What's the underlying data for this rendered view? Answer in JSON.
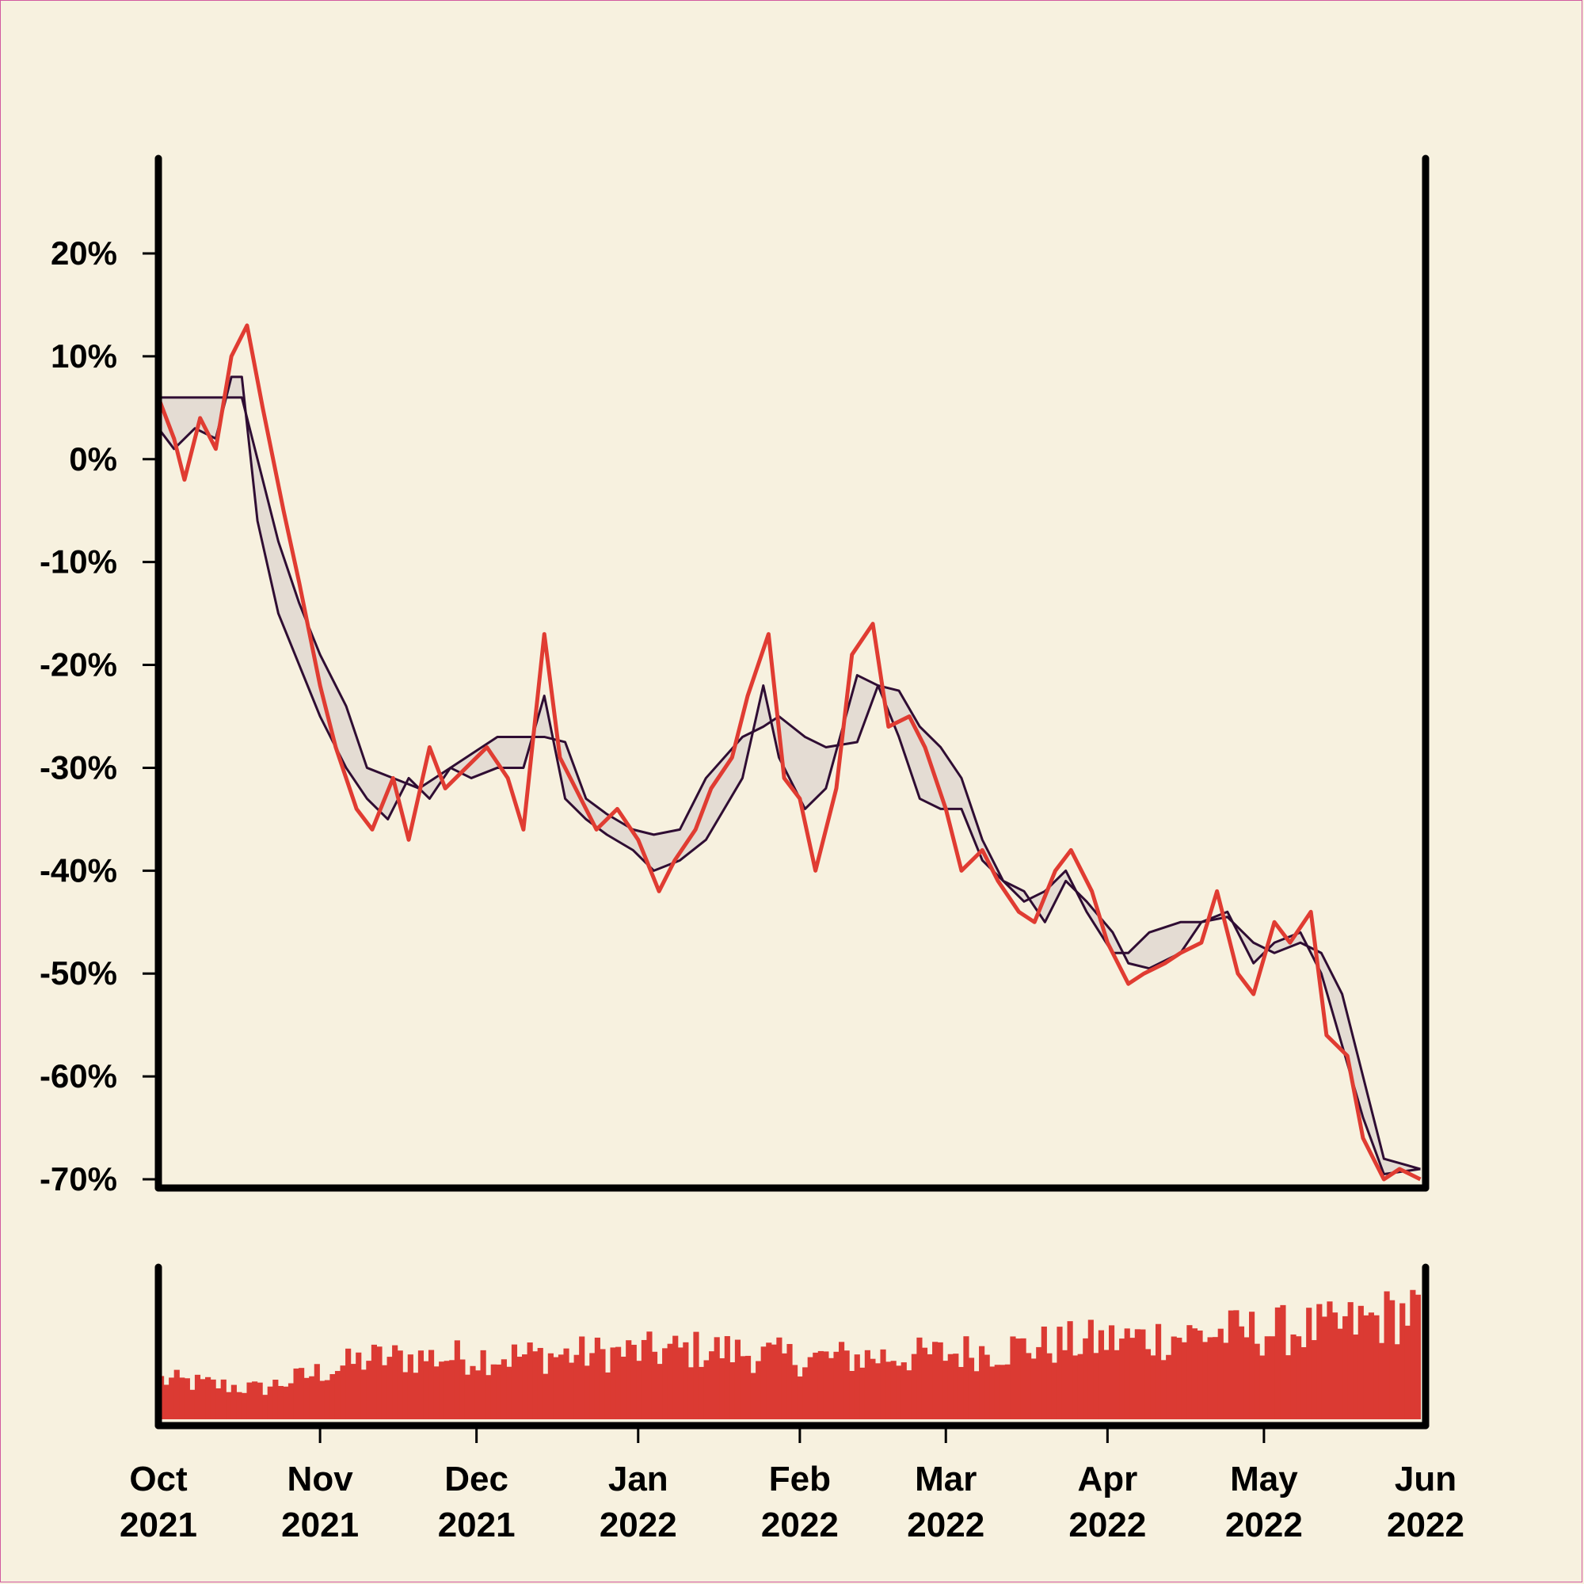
{
  "colors": {
    "background": "#f7f1df",
    "price_line": "#e03c32",
    "band_line": "#2f0d33",
    "band_fill": "#e4dcd3",
    "volume_bar": "#db3a33",
    "axis": "#000000"
  },
  "chart_data": [
    {
      "type": "line",
      "panel": "price",
      "title": "",
      "xlabel": "",
      "ylabel": "",
      "y_unit": "percent",
      "ylim": [
        -70,
        27
      ],
      "yticks": [
        20,
        10,
        0,
        -10,
        -20,
        -30,
        -40,
        -50,
        -60,
        -70
      ],
      "ytick_labels": [
        "20%",
        "10%",
        "0%",
        "-10%",
        "-20%",
        "-30%",
        "-40%",
        "-50%",
        "-60%",
        "-70%"
      ],
      "grid": false,
      "legend": "none",
      "series": [
        {
          "role": "price",
          "x": [
            "2021-10-01",
            "2021-10-04",
            "2021-10-06",
            "2021-10-09",
            "2021-10-12",
            "2021-10-15",
            "2021-10-18",
            "2021-10-21",
            "2021-10-25",
            "2021-10-28",
            "2021-11-01",
            "2021-11-04",
            "2021-11-08",
            "2021-11-11",
            "2021-11-15",
            "2021-11-18",
            "2021-11-22",
            "2021-11-25",
            "2021-11-29",
            "2021-12-03",
            "2021-12-07",
            "2021-12-10",
            "2021-12-14",
            "2021-12-17",
            "2021-12-21",
            "2021-12-24",
            "2021-12-28",
            "2022-01-01",
            "2022-01-05",
            "2022-01-08",
            "2022-01-12",
            "2022-01-15",
            "2022-01-19",
            "2022-01-22",
            "2022-01-26",
            "2022-01-29",
            "2022-02-01",
            "2022-02-04",
            "2022-02-08",
            "2022-02-11",
            "2022-02-15",
            "2022-02-18",
            "2022-02-22",
            "2022-02-25",
            "2022-03-01",
            "2022-03-04",
            "2022-03-08",
            "2022-03-11",
            "2022-03-15",
            "2022-03-18",
            "2022-03-22",
            "2022-03-25",
            "2022-03-29",
            "2022-04-01",
            "2022-04-05",
            "2022-04-08",
            "2022-04-12",
            "2022-04-15",
            "2022-04-19",
            "2022-04-22",
            "2022-04-26",
            "2022-04-29",
            "2022-05-03",
            "2022-05-06",
            "2022-05-10",
            "2022-05-13",
            "2022-05-17",
            "2022-05-20",
            "2022-05-24",
            "2022-05-27",
            "2022-05-31"
          ],
          "values": [
            6,
            2,
            -2,
            4,
            1,
            10,
            13,
            5,
            -5,
            -12,
            -22,
            -28,
            -34,
            -36,
            -31,
            -37,
            -28,
            -32,
            -30,
            -28,
            -31,
            -36,
            -17,
            -29,
            -33,
            -36,
            -34,
            -37,
            -42,
            -39,
            -36,
            -32,
            -29,
            -23,
            -17,
            -31,
            -33,
            -40,
            -32,
            -19,
            -16,
            -26,
            -25,
            -28,
            -34,
            -40,
            -38,
            -41,
            -44,
            -45,
            -40,
            -38,
            -42,
            -47,
            -51,
            -50,
            -49,
            -48,
            -47,
            -42,
            -50,
            -52,
            -45,
            -47,
            -44,
            -56,
            -58,
            -66,
            -70,
            -69,
            -70
          ]
        },
        {
          "role": "band-upper",
          "x": [
            "2021-10-01",
            "2021-10-14",
            "2021-10-17",
            "2021-10-20",
            "2021-10-24",
            "2021-10-28",
            "2021-11-01",
            "2021-11-06",
            "2021-11-10",
            "2021-11-20",
            "2021-11-26",
            "2021-11-29",
            "2021-12-02",
            "2021-12-05",
            "2021-12-14",
            "2021-12-18",
            "2021-12-22",
            "2021-12-26",
            "2021-12-31",
            "2022-01-04",
            "2022-01-09",
            "2022-01-14",
            "2022-01-21",
            "2022-01-25",
            "2022-01-28",
            "2022-02-02",
            "2022-02-06",
            "2022-02-12",
            "2022-02-16",
            "2022-02-20",
            "2022-02-24",
            "2022-02-28",
            "2022-03-04",
            "2022-03-08",
            "2022-03-12",
            "2022-03-16",
            "2022-03-20",
            "2022-03-24",
            "2022-03-28",
            "2022-04-02",
            "2022-04-05",
            "2022-04-09",
            "2022-04-15",
            "2022-04-19",
            "2022-04-24",
            "2022-04-29",
            "2022-05-03",
            "2022-05-08",
            "2022-05-12",
            "2022-05-16",
            "2022-05-20",
            "2022-05-24",
            "2022-05-31"
          ],
          "values": [
            6,
            6,
            6,
            0,
            -8,
            -14,
            -19,
            -24,
            -30,
            -32,
            -30,
            -29,
            -28,
            -27,
            -27,
            -27.5,
            -33,
            -34.5,
            -36,
            -36.5,
            -36,
            -31,
            -27,
            -26,
            -25,
            -27,
            -28,
            -27.5,
            -22,
            -22.5,
            -26,
            -28,
            -31,
            -37,
            -41,
            -43,
            -42,
            -40,
            -44,
            -48,
            -48,
            -46,
            -45,
            -45,
            -44.5,
            -47,
            -48,
            -47,
            -48,
            -52,
            -60,
            -68,
            -69
          ]
        },
        {
          "role": "band-lower",
          "x": [
            "2021-10-01",
            "2021-10-04",
            "2021-10-08",
            "2021-10-12",
            "2021-10-15",
            "2021-10-17",
            "2021-10-20",
            "2021-10-24",
            "2021-10-28",
            "2021-11-01",
            "2021-11-06",
            "2021-11-10",
            "2021-11-14",
            "2021-11-18",
            "2021-11-22",
            "2021-11-26",
            "2021-11-30",
            "2021-12-05",
            "2021-12-10",
            "2021-12-14",
            "2021-12-18",
            "2021-12-22",
            "2021-12-26",
            "2021-12-31",
            "2022-01-04",
            "2022-01-09",
            "2022-01-14",
            "2022-01-21",
            "2022-01-25",
            "2022-01-28",
            "2022-02-02",
            "2022-02-06",
            "2022-02-12",
            "2022-02-16",
            "2022-02-20",
            "2022-02-24",
            "2022-02-28",
            "2022-03-04",
            "2022-03-08",
            "2022-03-12",
            "2022-03-16",
            "2022-03-20",
            "2022-03-24",
            "2022-03-28",
            "2022-04-02",
            "2022-04-05",
            "2022-04-09",
            "2022-04-15",
            "2022-04-19",
            "2022-04-24",
            "2022-04-29",
            "2022-05-03",
            "2022-05-08",
            "2022-05-12",
            "2022-05-16",
            "2022-05-20",
            "2022-05-24",
            "2022-05-31"
          ],
          "values": [
            3,
            1,
            3,
            2,
            8,
            8,
            -6,
            -15,
            -20,
            -25,
            -30,
            -33,
            -35,
            -31,
            -33,
            -30,
            -31,
            -30,
            -30,
            -23,
            -33,
            -35,
            -36.5,
            -38,
            -40,
            -39,
            -37,
            -31,
            -22,
            -29,
            -34,
            -32,
            -21,
            -22,
            -27,
            -33,
            -34,
            -34,
            -39,
            -41,
            -42,
            -45,
            -41,
            -43,
            -46,
            -49,
            -49.5,
            -48,
            -45,
            -44,
            -49,
            -47,
            -46,
            -50,
            -57,
            -64,
            -69.5,
            -69
          ]
        }
      ]
    },
    {
      "type": "bar",
      "panel": "volume",
      "title": "",
      "xlabel": "",
      "ylabel": "",
      "yticks": [],
      "x_start": "2021-10-01",
      "x_end": "2022-05-31",
      "bar_count": 243,
      "trend_points": [
        {
          "x": "2021-10-01",
          "v": 0.26
        },
        {
          "x": "2021-10-20",
          "v": 0.2
        },
        {
          "x": "2021-11-10",
          "v": 0.4
        },
        {
          "x": "2021-12-15",
          "v": 0.42
        },
        {
          "x": "2022-01-15",
          "v": 0.46
        },
        {
          "x": "2022-02-01",
          "v": 0.4
        },
        {
          "x": "2022-02-25",
          "v": 0.42
        },
        {
          "x": "2022-03-25",
          "v": 0.5
        },
        {
          "x": "2022-04-20",
          "v": 0.56
        },
        {
          "x": "2022-05-15",
          "v": 0.6
        },
        {
          "x": "2022-05-31",
          "v": 0.72
        }
      ],
      "variation": 0.3,
      "ylim": [
        0,
        1
      ]
    }
  ],
  "x_axis": {
    "ticks": [
      "2021-10-01",
      "2021-11-01",
      "2021-12-01",
      "2022-01-01",
      "2022-02-01",
      "2022-03-01",
      "2022-04-01",
      "2022-05-01",
      "2022-06-01"
    ],
    "labels": [
      {
        "month": "Oct",
        "year": "2021"
      },
      {
        "month": "Nov",
        "year": "2021"
      },
      {
        "month": "Dec",
        "year": "2021"
      },
      {
        "month": "Jan",
        "year": "2022"
      },
      {
        "month": "Feb",
        "year": "2022"
      },
      {
        "month": "Mar",
        "year": "2022"
      },
      {
        "month": "Apr",
        "year": "2022"
      },
      {
        "month": "May",
        "year": "2022"
      },
      {
        "month": "Jun",
        "year": "2022"
      }
    ]
  }
}
